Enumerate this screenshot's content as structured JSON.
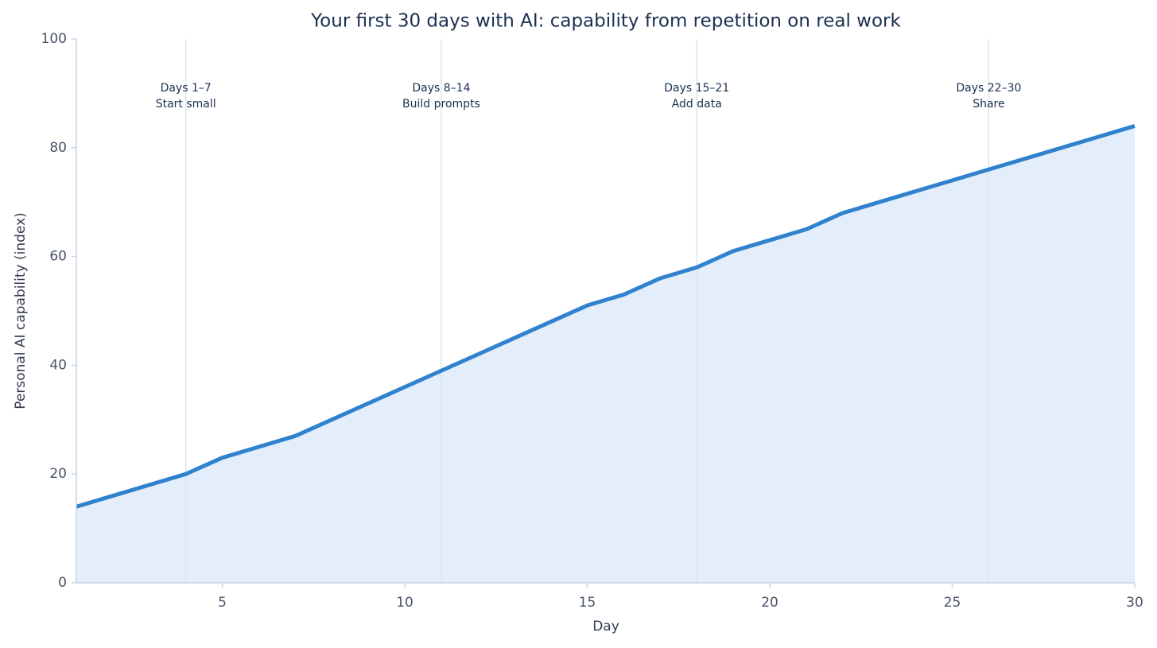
{
  "chart_data": {
    "type": "area",
    "title": "Your first 30 days with AI: capability from repetition on real work",
    "xlabel": "Day",
    "ylabel": "Personal AI capability (index)",
    "x": [
      1,
      2,
      3,
      4,
      5,
      6,
      7,
      8,
      9,
      10,
      11,
      12,
      13,
      14,
      15,
      16,
      17,
      18,
      19,
      20,
      21,
      22,
      23,
      24,
      25,
      26,
      27,
      28,
      29,
      30
    ],
    "series": [
      {
        "name": "Capability",
        "color": "#3182ce",
        "fill": "#e3eefa",
        "values": [
          14,
          16,
          18,
          20,
          23,
          25,
          27,
          30,
          33,
          36,
          39,
          42,
          45,
          48,
          51,
          53,
          56,
          58,
          61,
          63,
          65,
          68,
          70,
          72,
          74,
          76,
          78,
          80,
          82,
          84
        ]
      }
    ],
    "xlim": [
      1,
      30
    ],
    "xticks": [
      5,
      10,
      15,
      20,
      25,
      30
    ],
    "ylim": [
      0,
      100
    ],
    "yticks": [
      0,
      20,
      40,
      60,
      80,
      100
    ],
    "annotations": [
      {
        "x": 4,
        "label": "Days 1–7",
        "sublabel": "Start small"
      },
      {
        "x": 11,
        "label": "Days 8–14",
        "sublabel": "Build prompts"
      },
      {
        "x": 18,
        "label": "Days 15–21",
        "sublabel": "Add data"
      },
      {
        "x": 26,
        "label": "Days 22–30",
        "sublabel": "Share"
      }
    ]
  }
}
